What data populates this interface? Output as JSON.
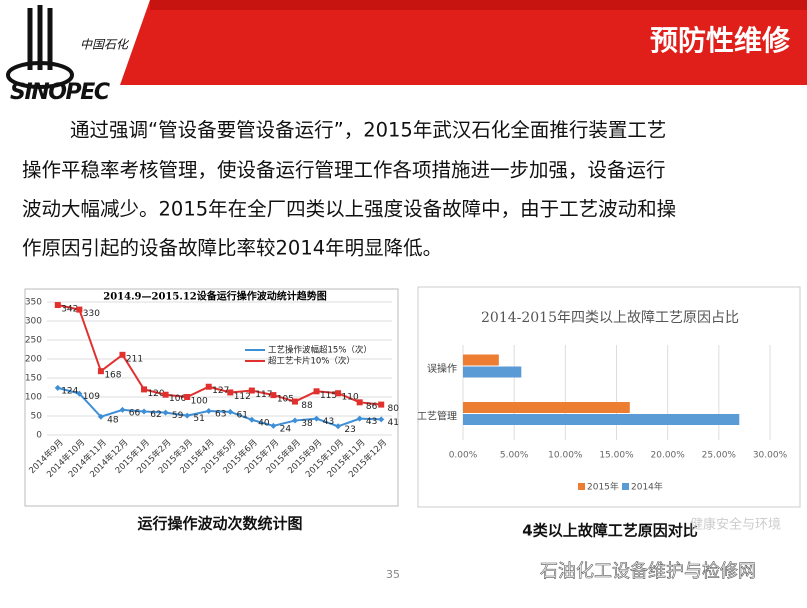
{
  "header": {
    "title": "预防性维修",
    "logo_cn": "中国石化",
    "logo_en": "SINOPEC"
  },
  "body": {
    "lines": [
      "通过强调“管设备要管设备运行”，2015年武汉石化全面推行装置工艺",
      "操作平稳率考核管理，使设备运行管理工作各项措施进一步加强，设备运行",
      "波动大幅减少。2015年在全厂四类以上强度设备故障中，由于工艺波动和操",
      "作原因引起的设备故障比率较2014年明显降低。"
    ]
  },
  "chart_data": [
    {
      "type": "line",
      "title": "2014.9—2015.12设备运行操作波动统计趋势图",
      "categories": [
        "2014年9月",
        "2014年10月",
        "2014年11月",
        "2014年12月",
        "2015年1月",
        "2015年2月",
        "2015年3月",
        "2015年4月",
        "2015年5月",
        "2015年6月",
        "2015年7月",
        "2015年8月",
        "2015年9月",
        "2015年10月",
        "2015年11月",
        "2015年12月"
      ],
      "series": [
        {
          "name": "工艺操作波幅超15%（次）",
          "color": "#3f8fd6",
          "values": [
            124,
            109,
            48,
            66,
            62,
            59,
            51,
            63,
            61,
            40,
            24,
            38,
            43,
            23,
            43,
            41
          ]
        },
        {
          "name": "超工艺卡片10%（次）",
          "color": "#e0312f",
          "values": [
            342,
            330,
            168,
            211,
            120,
            106,
            100,
            127,
            112,
            117,
            105,
            88,
            115,
            110,
            86,
            80
          ]
        }
      ],
      "ylim": [
        0,
        350
      ],
      "yticks": [
        0,
        50,
        100,
        150,
        200,
        250,
        300,
        350
      ],
      "grid": true
    },
    {
      "type": "barh",
      "title": "2014-2015年四类以上故障工艺原因占比",
      "categories": [
        "误操作",
        "工艺管理"
      ],
      "series": [
        {
          "name": "2015年",
          "color": "#ed7d31",
          "values": [
            3.5,
            16.3
          ]
        },
        {
          "name": "2014年",
          "color": "#5b9bd5",
          "values": [
            5.7,
            27.0
          ]
        }
      ],
      "xlim": [
        0,
        30
      ],
      "xticks": [
        {
          "value": 0,
          "label": "0.00%"
        },
        {
          "value": 5,
          "label": "5.00%"
        },
        {
          "value": 10,
          "label": "10.00%"
        },
        {
          "value": 15,
          "label": "15.00%"
        },
        {
          "value": 20,
          "label": "20.00%"
        },
        {
          "value": 25,
          "label": "25.00%"
        },
        {
          "value": 30,
          "label": "30.00%"
        }
      ],
      "grid": true
    }
  ],
  "captions": [
    "运行操作波动次数统计图",
    "4类以上故障工艺原因对比"
  ],
  "footer": {
    "page": "35",
    "watermark": "石油化工设备维护与检修网",
    "watermark2": "健康安全与环境"
  }
}
